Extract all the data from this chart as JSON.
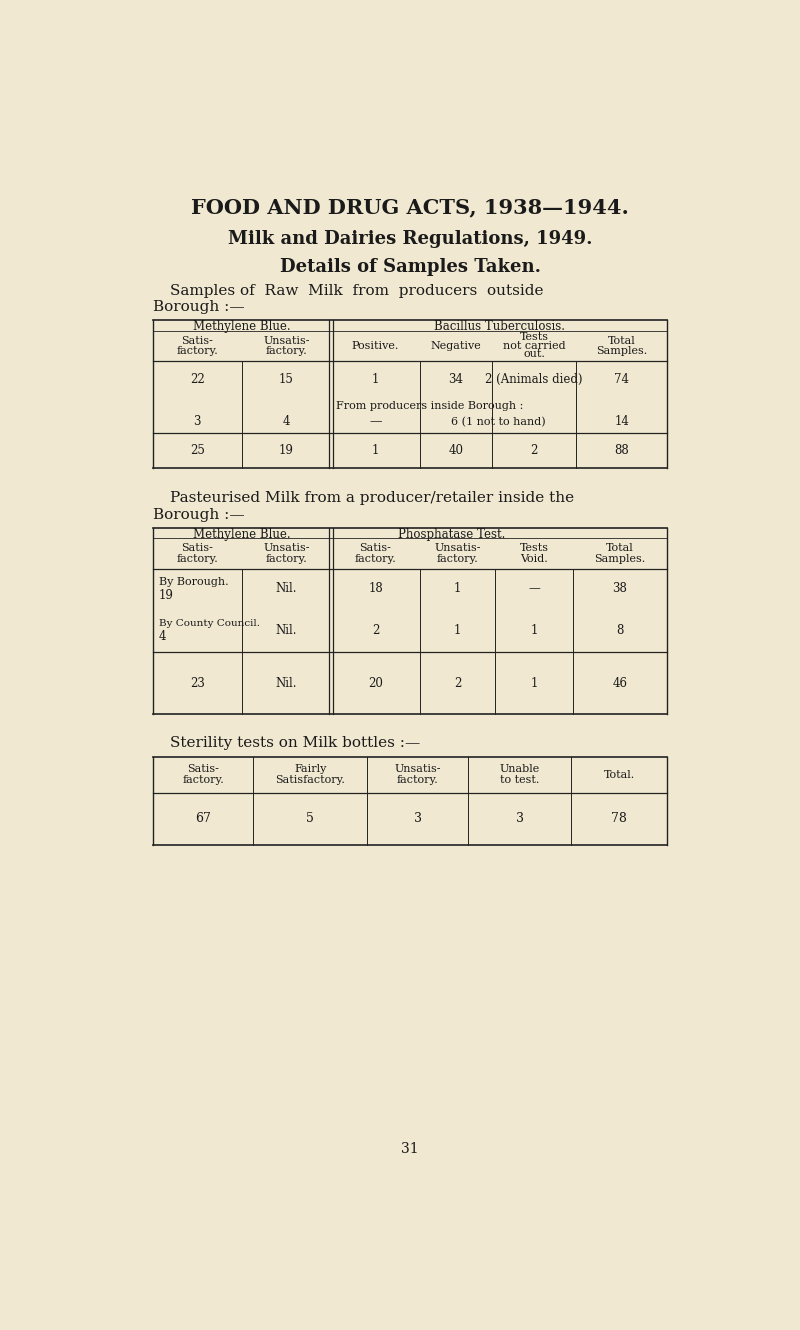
{
  "bg_color": "#f0e8d0",
  "text_color": "#1a1a1a",
  "line_color": "#222222",
  "title1": "FOOD AND DRUG ACTS, 1938—1944.",
  "title2": "Milk and Dairies Regulations, 1949.",
  "title3": "Details of Samples Taken.",
  "t1_group1": "Methylene Blue.",
  "t1_group2": "Bacillus Tuberculosis.",
  "t1_col_headers": [
    "Satis-\nfactory.",
    "Unsatis-\nfactory.",
    "Positive.",
    "Negative",
    "Tests\nnot carried\nout.",
    "Total\nSamples."
  ],
  "t1_row1": [
    "22",
    "15",
    "1",
    "34",
    "2 (Animals died)",
    "74"
  ],
  "t1_mid_text": "From producers inside Borough :",
  "t1_row2_c0": "3",
  "t1_row2_c1": "4",
  "t1_row2_c2": "—",
  "t1_row2_c34": "6 (1 not to hand)",
  "t1_row2_c5": "14",
  "t1_row3": [
    "25",
    "19",
    "1",
    "40",
    "2",
    "88"
  ],
  "sub2_line1": "Pasteurised Milk from a producer/retailer inside the",
  "sub2_line2": "Borough :—",
  "t2_group1": "Methylene Blue.",
  "t2_group2": "Phosphatase Test.",
  "t2_col_headers": [
    "Satis-\nfactory.",
    "Unsatis-\nfactory.",
    "Satis-\nfactory.",
    "Unsatis-\nfactory.",
    "Tests\nVoid.",
    "Total\nSamples."
  ],
  "t2_row1_label1": "By Borough.",
  "t2_row1_label2": "19",
  "t2_row1_vals": [
    "Nil.",
    "18",
    "1",
    "—",
    "38"
  ],
  "t2_row2_label1": "By County Council.",
  "t2_row2_label2": "4",
  "t2_row2_vals": [
    "Nil.",
    "2",
    "1",
    "1",
    "8"
  ],
  "t2_row3": [
    "23",
    "Nil.",
    "20",
    "2",
    "1",
    "46"
  ],
  "sub3": "Sterility tests on Milk bottles :—",
  "t3_col_headers": [
    "Satis-\nfactory.",
    "Fairly\nSatisfactory.",
    "Unsatis-\nfactory.",
    "Unable\nto test.",
    "Total."
  ],
  "t3_row1": [
    "67",
    "5",
    "3",
    "3",
    "78"
  ],
  "page_num": "31"
}
